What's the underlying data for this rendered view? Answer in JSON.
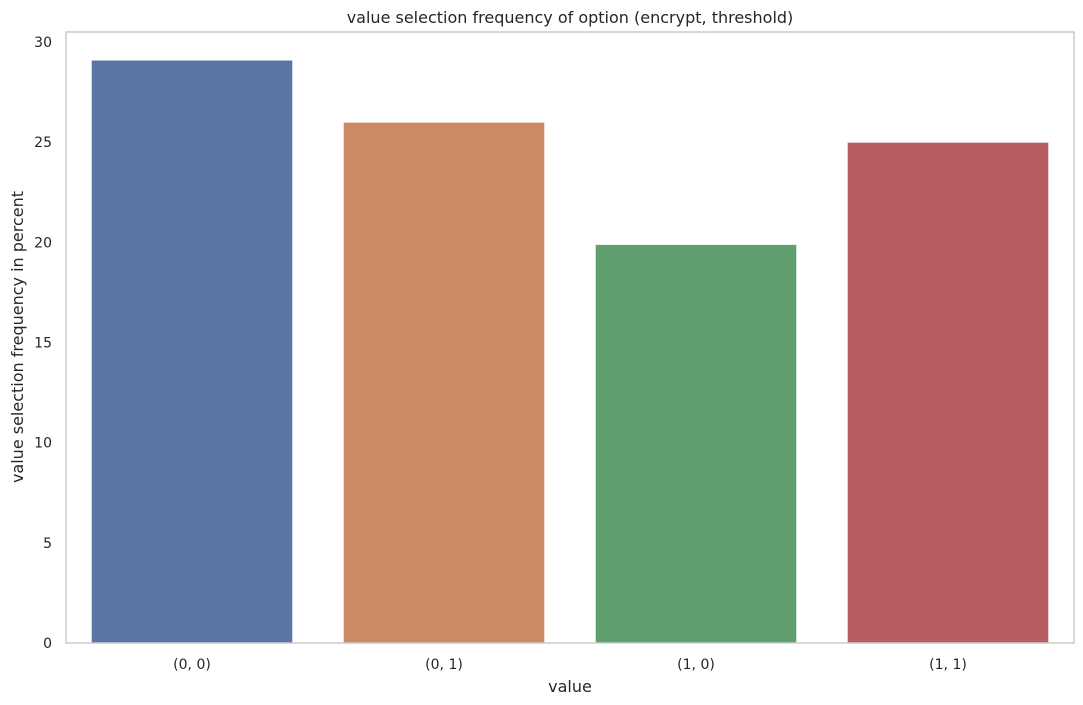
{
  "chart_data": {
    "type": "bar",
    "title": "value selection frequency of option (encrypt, threshold)",
    "xlabel": "value",
    "ylabel": "value selection frequency in percent",
    "categories": [
      "(0, 0)",
      "(0, 1)",
      "(1, 0)",
      "(1, 1)"
    ],
    "values": [
      29.1,
      26.0,
      19.9,
      25.0
    ],
    "colors": [
      "#5975a4",
      "#cc8963",
      "#5f9e6e",
      "#b55d60"
    ],
    "ylim": [
      0,
      30.5
    ],
    "yticks": [
      0,
      5,
      10,
      15,
      20,
      25,
      30
    ],
    "grid": false,
    "legend": false
  }
}
